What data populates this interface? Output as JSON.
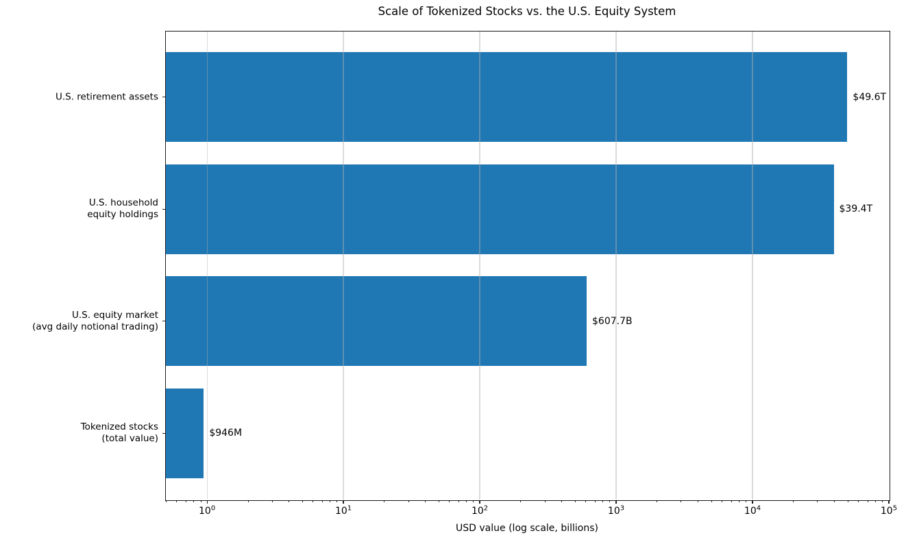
{
  "chart_data": {
    "type": "bar",
    "orientation": "horizontal",
    "title": "Scale of Tokenized Stocks vs. the U.S. Equity System",
    "xlabel": "USD value (log scale, billions)",
    "xscale": "log",
    "xlim_billions": [
      0.493,
      100000
    ],
    "x_tick_base": 10,
    "x_tick_exponents": [
      0,
      1,
      2,
      3,
      4,
      5
    ],
    "grid": true,
    "grid_color": "#b0b0b0",
    "bar_color": "#1f77b4",
    "text_color": "#000000",
    "legend": null,
    "categories": [
      [
        "U.S. retirement assets"
      ],
      [
        "U.S. household",
        "equity holdings"
      ],
      [
        "U.S. equity market",
        "(avg daily notional trading)"
      ],
      [
        "Tokenized stocks",
        "(total value)"
      ]
    ],
    "values_billions": [
      49600,
      39400,
      607.7,
      0.946
    ],
    "bar_labels": [
      "$49.6T",
      "$39.4T",
      "$607.7B",
      "$946M"
    ]
  }
}
